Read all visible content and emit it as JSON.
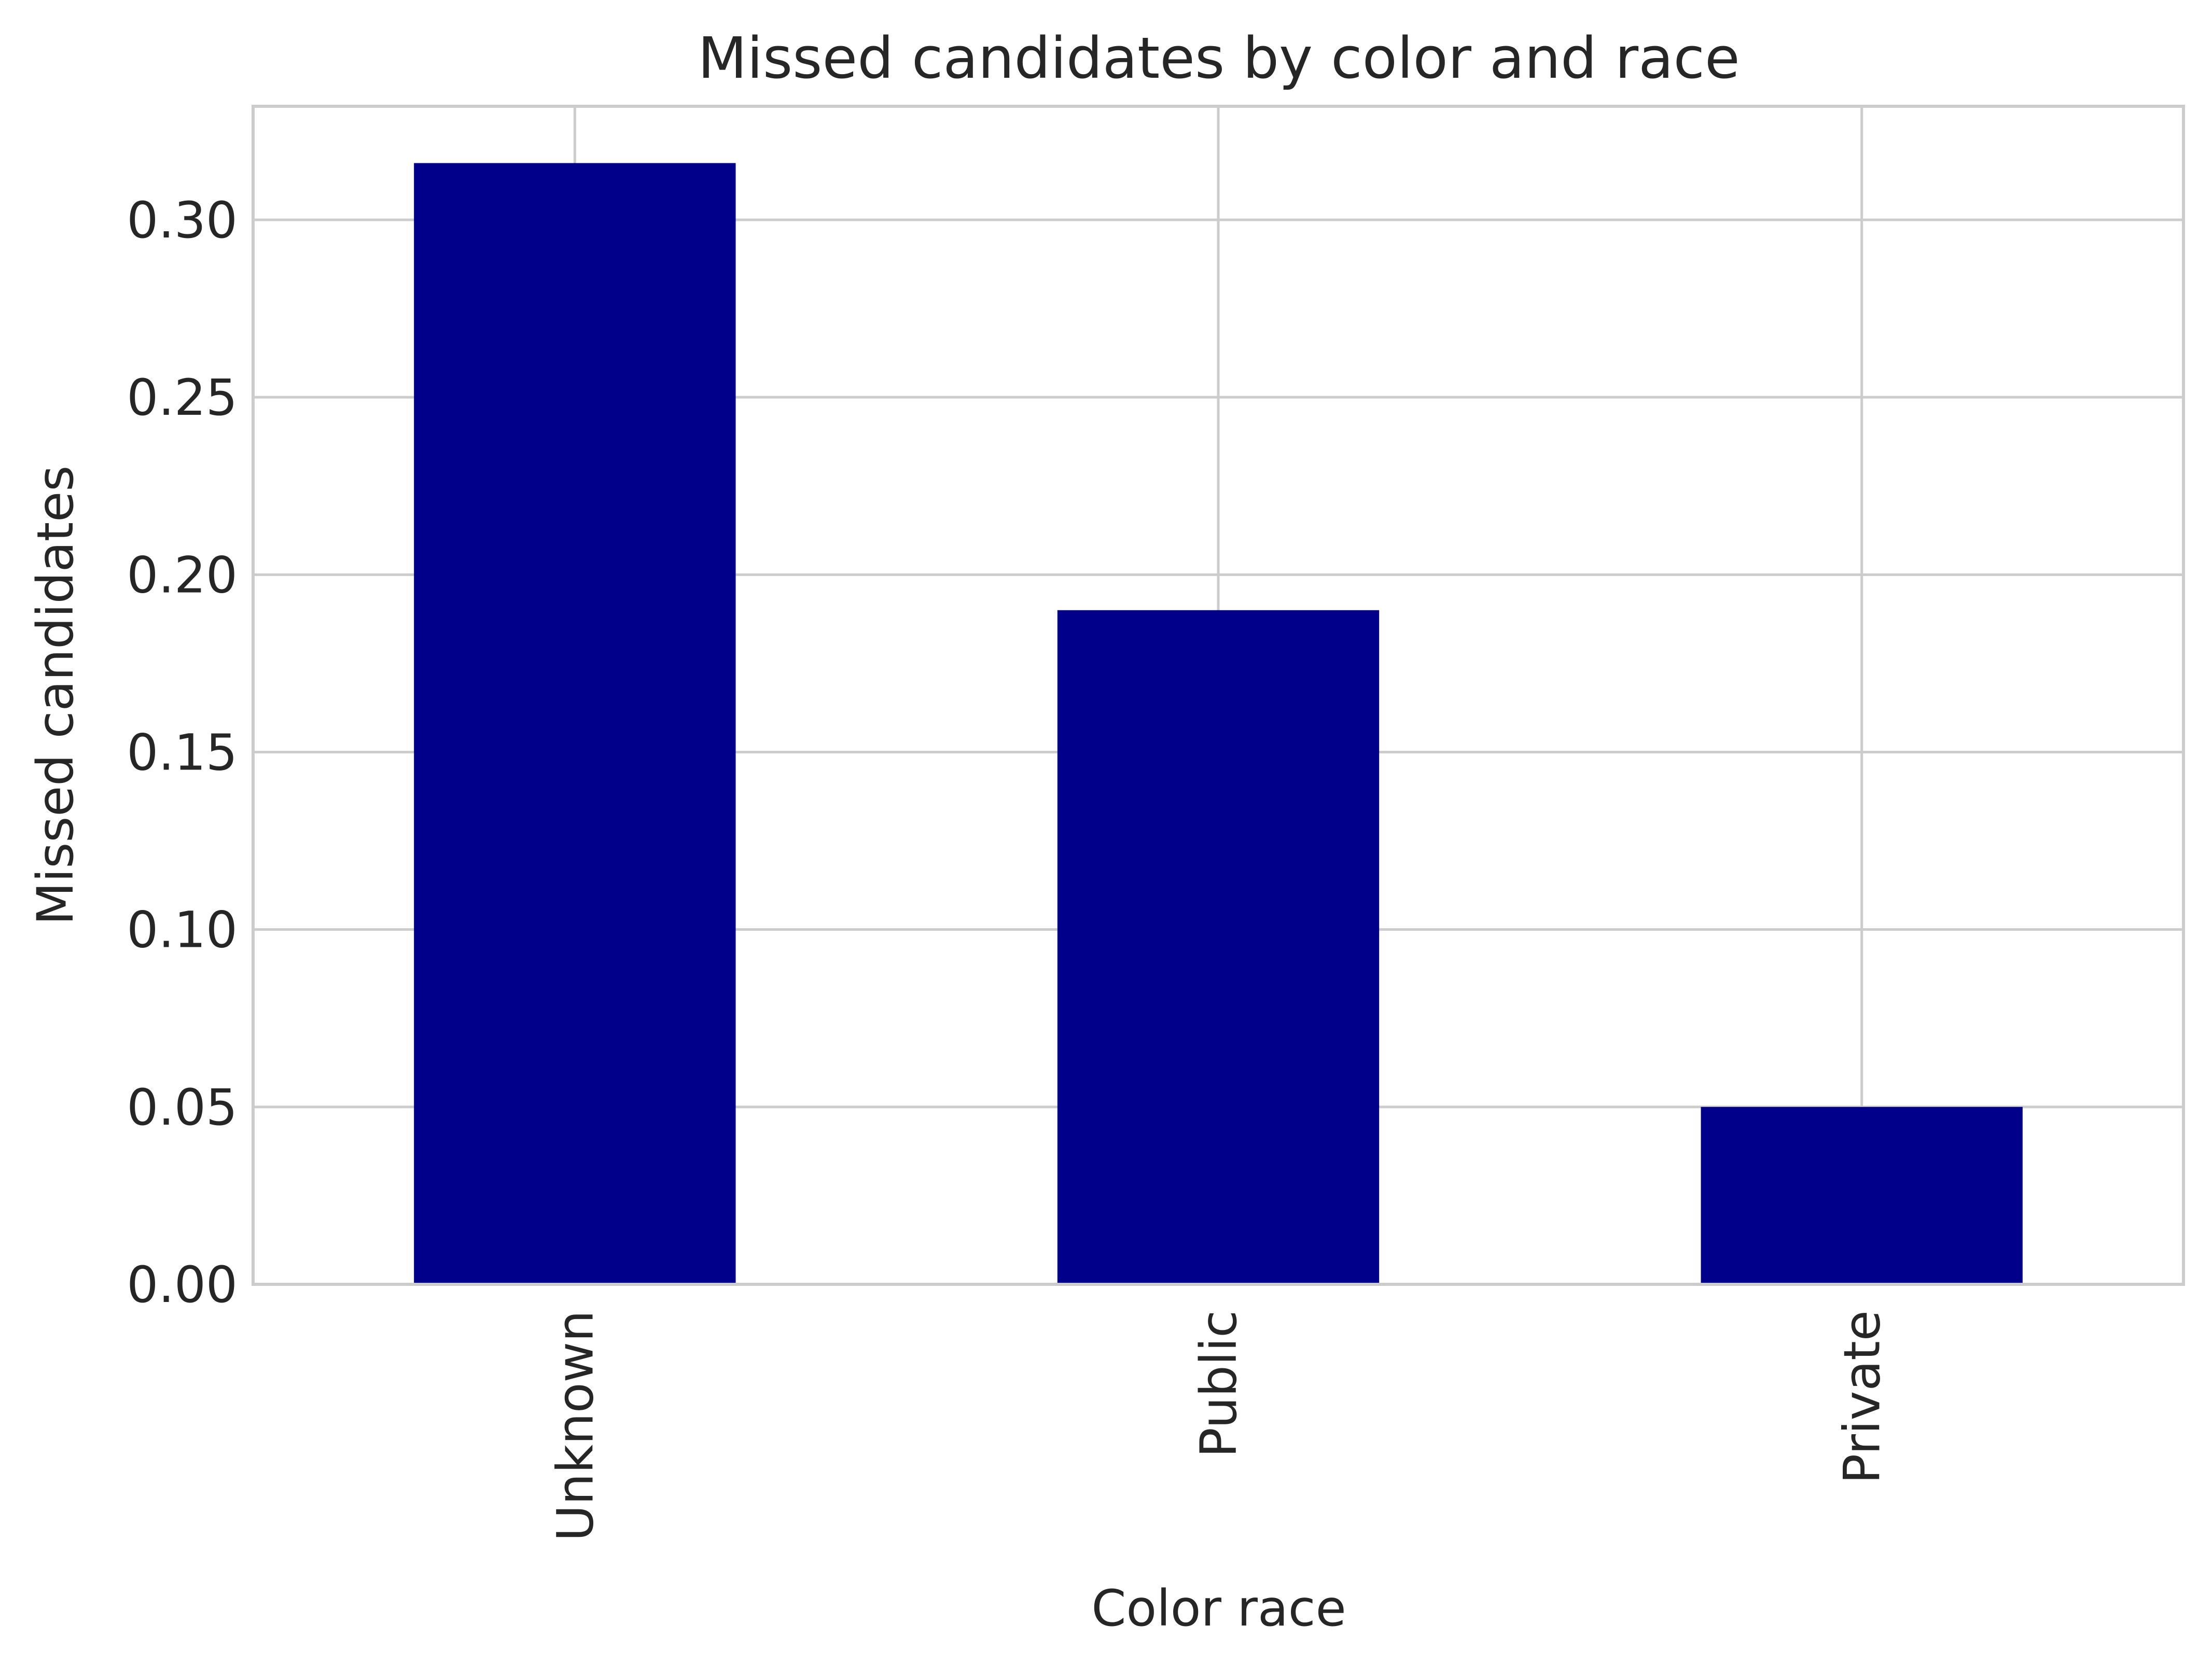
{
  "chart_data": {
    "type": "bar",
    "title": "Missed candidates by color and race",
    "xlabel": "Color race",
    "ylabel": "Missed candidates",
    "categories": [
      "Unknown",
      "Public",
      "Private"
    ],
    "values": [
      0.316,
      0.19,
      0.05
    ],
    "ylim": [
      0,
      0.332
    ],
    "yticks": [
      "0.00",
      "0.05",
      "0.10",
      "0.15",
      "0.20",
      "0.25",
      "0.30"
    ],
    "grid": true,
    "bar_color": "#00008b",
    "grid_color": "#cccccc"
  }
}
